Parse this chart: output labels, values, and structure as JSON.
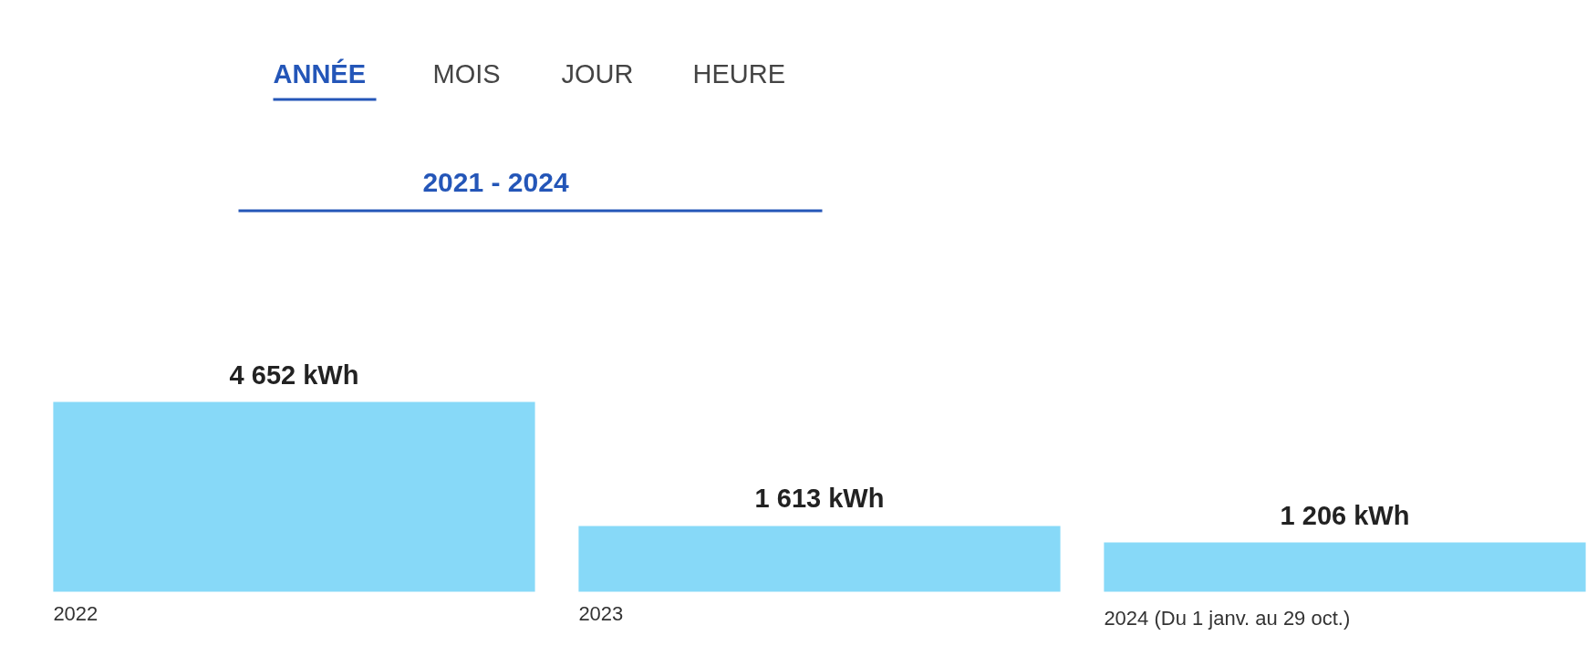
{
  "chart_data": {
    "type": "bar",
    "annotations": [
      "ANNÉE",
      "MOIS",
      "JOUR",
      "HEURE",
      "2021 - 2024"
    ],
    "categories": [
      "2022",
      "2023",
      "2024 (Du 1 janv. au 29 oct.)"
    ],
    "values": [
      4652,
      1613,
      1206
    ],
    "value_labels": [
      "4 652 kWh",
      "1 613 kWh",
      "1 206 kWh"
    ],
    "color": "#87d9f8"
  }
}
